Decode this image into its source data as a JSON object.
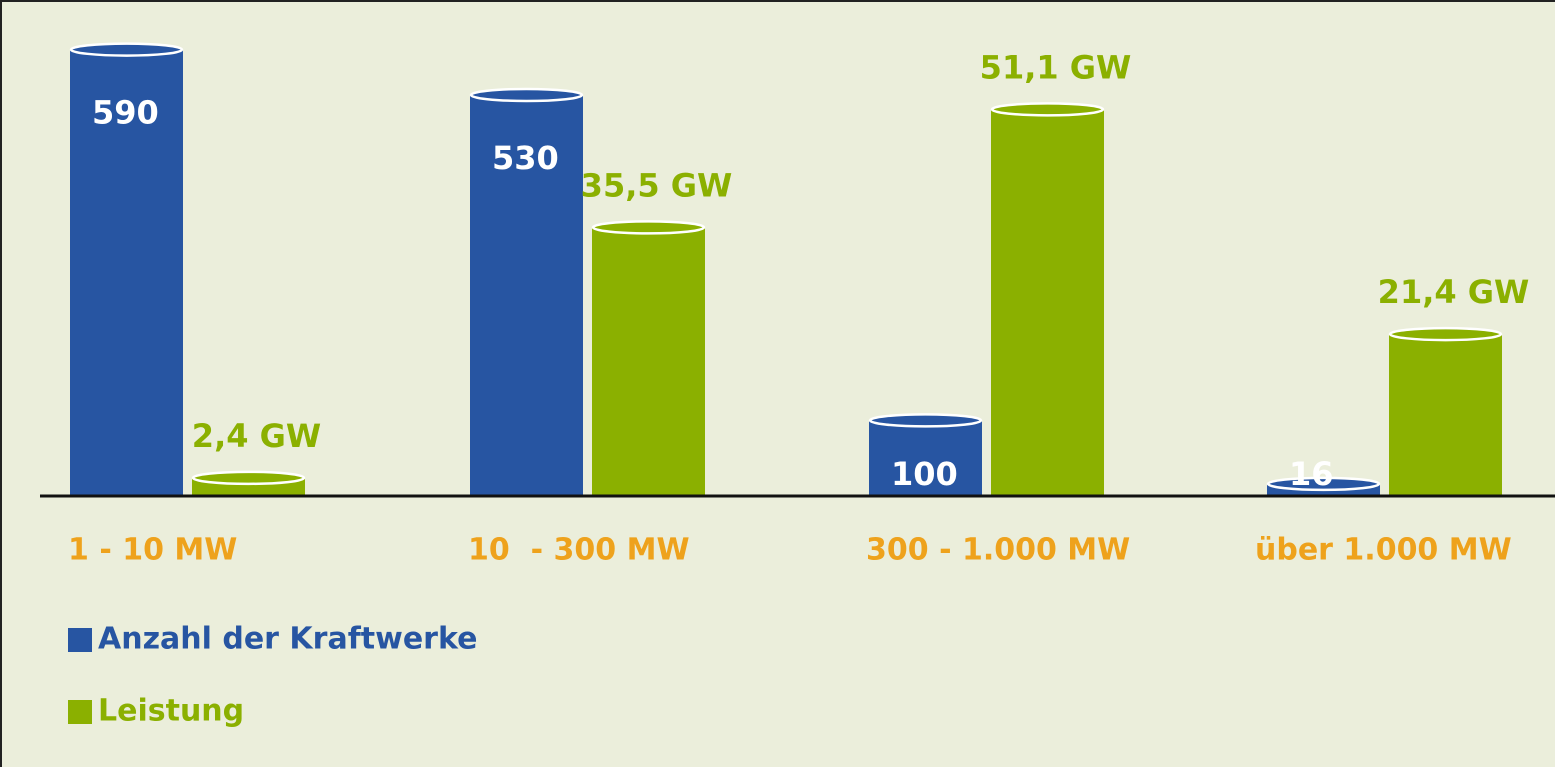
{
  "chart_data": {
    "type": "bar",
    "categories": [
      "1 - 10 MW",
      "10  - 300 MW",
      "300 - 1.000 MW",
      "über 1.000 MW"
    ],
    "series": [
      {
        "name": "Anzahl der Kraftwerke",
        "color": "#2755a2",
        "values": [
          590,
          530,
          100,
          16
        ]
      },
      {
        "name": "Leistung",
        "color": "#8bb000",
        "axis": "y2",
        "values": [
          2.4,
          35.5,
          51.1,
          21.4
        ],
        "value_labels": [
          "2,4 GW",
          "35,5 GW",
          "51,1 GW",
          "21,4 GW"
        ]
      }
    ],
    "ylim": [
      0,
      600
    ],
    "y2lim": [
      0,
      60
    ],
    "category_color": "#eea21c"
  }
}
